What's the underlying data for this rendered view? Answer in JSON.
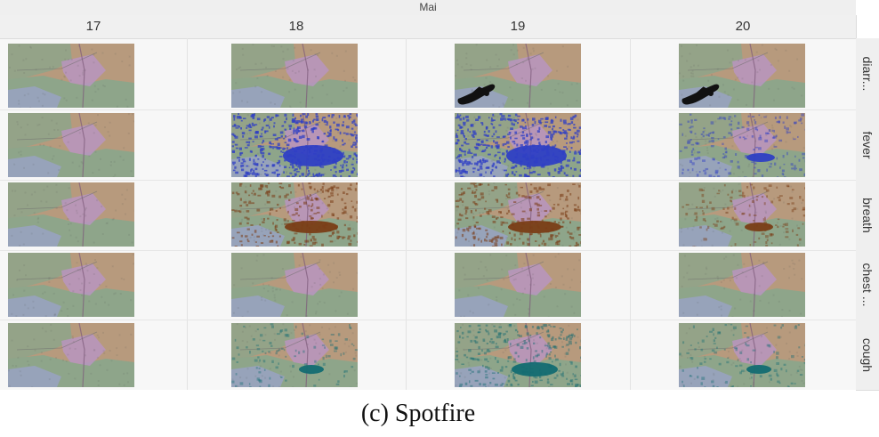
{
  "month": "Mai",
  "days": [
    "17",
    "18",
    "19",
    "20"
  ],
  "symptoms": [
    "diarr...",
    "fever",
    "breath",
    "chest ...",
    "cough"
  ],
  "caption": "(c) Spotfire",
  "colors": {
    "land_tan": "#b79a7d",
    "land_green": "#8ea58a",
    "land_blue": "#9aa3c6",
    "land_purple": "#b895bf",
    "fever_blue": "#2f3fc4",
    "breath_brown": "#7a3d16",
    "cough_teal": "#136b72",
    "diarrhea_black": "#111111"
  },
  "tiles": [
    [
      "none",
      "none",
      "diarrhea",
      "diarrhea"
    ],
    [
      "none",
      "fever-heavy",
      "fever-heavy",
      "fever-light"
    ],
    [
      "none",
      "breath-heavy",
      "breath-heavy",
      "breath-light"
    ],
    [
      "none",
      "none",
      "none",
      "none"
    ],
    [
      "none",
      "cough-light",
      "cough-heavy",
      "cough-light"
    ]
  ]
}
